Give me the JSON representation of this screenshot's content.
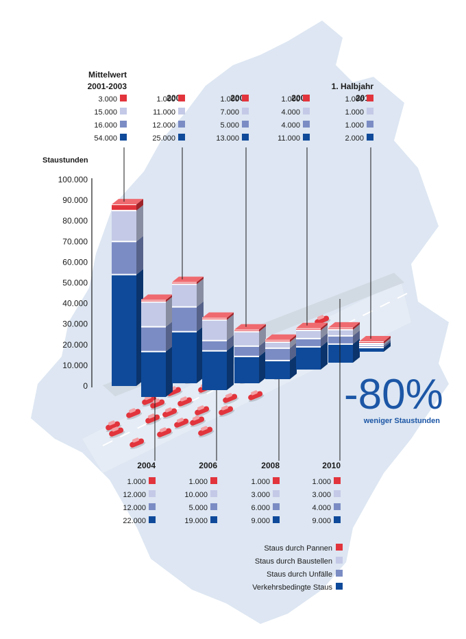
{
  "colors": {
    "pannen": "#e2343c",
    "baustellen": "#c3c9e6",
    "unfaelle": "#7b8cc4",
    "verkehr": "#0f4a9a",
    "map": "#dde6f2",
    "accent": "#1c56a6"
  },
  "chart_data": {
    "type": "bar",
    "stacked": true,
    "ylabel": "Staustunden",
    "ylim": [
      0,
      100000
    ],
    "y_ticks": [
      "100.000",
      "90.000",
      "80.000",
      "70.000",
      "60.000",
      "50.000",
      "40.000",
      "30.000",
      "20.000",
      "10.000",
      "0"
    ],
    "categories": [
      {
        "label": "Mittelwert 2001-2003",
        "label_lines": [
          "Mittelwert",
          "2001-2003"
        ]
      },
      {
        "label": "2004",
        "label_lines": [
          "2004"
        ]
      },
      {
        "label": "2005",
        "label_lines": [
          "2005"
        ]
      },
      {
        "label": "2006",
        "label_lines": [
          "2006"
        ]
      },
      {
        "label": "2007",
        "label_lines": [
          "2007"
        ]
      },
      {
        "label": "2008",
        "label_lines": [
          "2008"
        ]
      },
      {
        "label": "2009",
        "label_lines": [
          "2009"
        ]
      },
      {
        "label": "2010",
        "label_lines": [
          "2010"
        ]
      },
      {
        "label": "1. Halbjahr 2011",
        "label_lines": [
          "1. Halbjahr",
          "2011"
        ]
      }
    ],
    "series": [
      {
        "name": "Staus durch Pannen",
        "values": [
          3000,
          1000,
          1000,
          1000,
          1000,
          1000,
          1000,
          1000,
          1000
        ],
        "labels": [
          "3.000",
          "1.000",
          "1.000",
          "1.000",
          "1.000",
          "1.000",
          "1.000",
          "1.000",
          "1.000"
        ]
      },
      {
        "name": "Staus durch Baustellen",
        "values": [
          15000,
          12000,
          11000,
          10000,
          7000,
          3000,
          4000,
          3000,
          1000
        ],
        "labels": [
          "15.000",
          "12.000",
          "11.000",
          "10.000",
          "7.000",
          "3.000",
          "4.000",
          "3.000",
          "1.000"
        ]
      },
      {
        "name": "Staus durch Unfälle",
        "values": [
          16000,
          12000,
          12000,
          5000,
          5000,
          6000,
          4000,
          4000,
          1000
        ],
        "labels": [
          "16.000",
          "12.000",
          "12.000",
          "5.000",
          "5.000",
          "6.000",
          "4.000",
          "4.000",
          "1.000"
        ]
      },
      {
        "name": "Verkehrsbedingte Staus",
        "values": [
          54000,
          22000,
          25000,
          19000,
          13000,
          9000,
          11000,
          9000,
          2000
        ],
        "labels": [
          "54.000",
          "22.000",
          "25.000",
          "19.000",
          "13.000",
          "9.000",
          "11.000",
          "9.000",
          "2.000"
        ]
      }
    ],
    "legend": {
      "position": "bottom-right",
      "items": [
        "Staus durch Pannen",
        "Staus durch Baustellen",
        "Staus durch Unfälle",
        "Verkehrsbedingte Staus"
      ]
    },
    "annotation": {
      "value": "-80%",
      "text": "weniger Staustunden"
    }
  }
}
